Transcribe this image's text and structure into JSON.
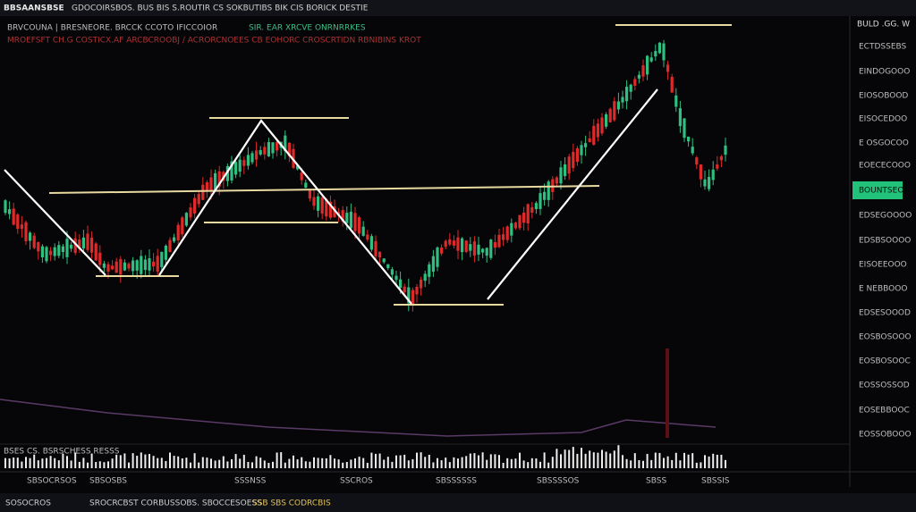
{
  "header": {
    "symbol": "BBSAANSBSE",
    "title": "GDOCOIRSBOS. BUS BIS S.ROUTIR CS SOKBUTIBS BIK CIS BORICK DESTIE"
  },
  "legend": {
    "line1": "BRVCOUNA | BRESNEORE. BRCCK CCOTO IFICCOIOR",
    "line1b": "SIR. EAR XRCVE ONRNRRKES",
    "line2": "MROEFSFT CH.G COSTICX.AF ARCBCROOBJ / ACRORCNOEES CB EOHORC CROSCRTIDN RBNIBINS KROT"
  },
  "price_axis": {
    "corner": "BULD .GG. W",
    "labels": [
      "ECTDSSEBS",
      "EINDOGOOO",
      "EIOSOBOOD",
      "EISOCEDOO",
      "E OSGOCOO",
      "EOECECOOO",
      "BOUNTSEO",
      "EDSEGOOOO",
      "EDSBSOOOO",
      "EISOEEOOO",
      "E NEBBOOO",
      "EDSESOOOD",
      "EOSBOSOOO",
      "EOSBOSOOC",
      "EOSSOSSOD",
      "EOSEBBOOC",
      "EOSSOBOOO"
    ]
  },
  "volume_label": "BSES CS. BSRSCHESS RESSS",
  "time_axis": [
    "SBSOCRSOS",
    "SBSOSBS",
    "SSSNSS",
    "SSCROS",
    "SBSSSSSS",
    "SBSSSSOS",
    "SBSS",
    "SBSSIS"
  ],
  "status": {
    "left": "SOSOCROS",
    "mid": "SROCRCBST CORBUSSOBS. SBOCCESOESS",
    "right": "SSB SBS CODRCBIS"
  }
}
